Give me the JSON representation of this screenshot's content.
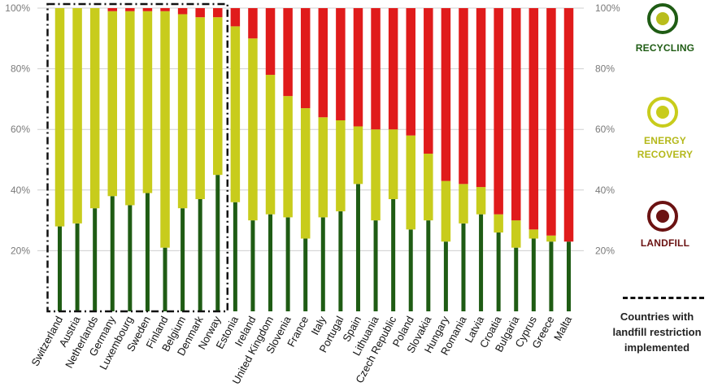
{
  "chart_data": {
    "type": "bar",
    "stacked": true,
    "title": "",
    "xlabel": "",
    "ylabel": "",
    "ylim": [
      0,
      100
    ],
    "yticks": [
      "20%",
      "40%",
      "60%",
      "80%",
      "100%"
    ],
    "grid": true,
    "categories": [
      "Switzerland",
      "Austria",
      "Netherlands",
      "Germany",
      "Luxembourg",
      "Sweden",
      "Finland",
      "Belgium",
      "Denmark",
      "Norway",
      "Estonia",
      "Ireland",
      "United Kingdom",
      "Slovenia",
      "France",
      "Italy",
      "Portugal",
      "Spain",
      "Lithuania",
      "Czech Republic",
      "Poland",
      "Slovakia",
      "Hungary",
      "Romania",
      "Latvia",
      "Croatia",
      "Bulgaria",
      "Cyprus",
      "Greece",
      "Malta"
    ],
    "series": [
      {
        "name": "Recycling",
        "color": "#1f5c14",
        "values": [
          28,
          29,
          34,
          38,
          35,
          39,
          21,
          34,
          37,
          45,
          36,
          30,
          32,
          31,
          24,
          31,
          33,
          42,
          30,
          37,
          27,
          30,
          23,
          29,
          32,
          26,
          21,
          24,
          23,
          23
        ]
      },
      {
        "name": "Energy Recovery",
        "color": "#c8cc1c",
        "values": [
          72,
          71,
          66,
          61,
          64,
          60,
          78,
          64,
          60,
          52,
          58,
          60,
          46,
          40,
          43,
          33,
          30,
          19,
          30,
          23,
          31,
          22,
          20,
          13,
          9,
          6,
          9,
          3,
          2,
          0
        ]
      },
      {
        "name": "Landfill",
        "color": "#e01b1b",
        "values": [
          0,
          0,
          0,
          1,
          1,
          1,
          1,
          2,
          3,
          3,
          6,
          10,
          22,
          29,
          33,
          36,
          37,
          39,
          40,
          40,
          42,
          48,
          57,
          58,
          59,
          68,
          70,
          73,
          75,
          77
        ]
      }
    ],
    "highlight_group": {
      "label": "Countries with landfill restriction implemented",
      "count": 10
    }
  },
  "legend": {
    "items": [
      {
        "label_lines": [
          "RECYCLING"
        ],
        "color": "#1f5c14",
        "icon": "recycling-icon"
      },
      {
        "label_lines": [
          "ENERGY",
          "RECOVERY"
        ],
        "color": "#b4b81a",
        "icon": "energy-recovery-icon"
      },
      {
        "label_lines": [
          "LANDFILL"
        ],
        "color": "#6b1212",
        "icon": "landfill-icon"
      }
    ],
    "restriction_note_lines": [
      "Countries with",
      "landfill restriction",
      "implemented"
    ]
  }
}
